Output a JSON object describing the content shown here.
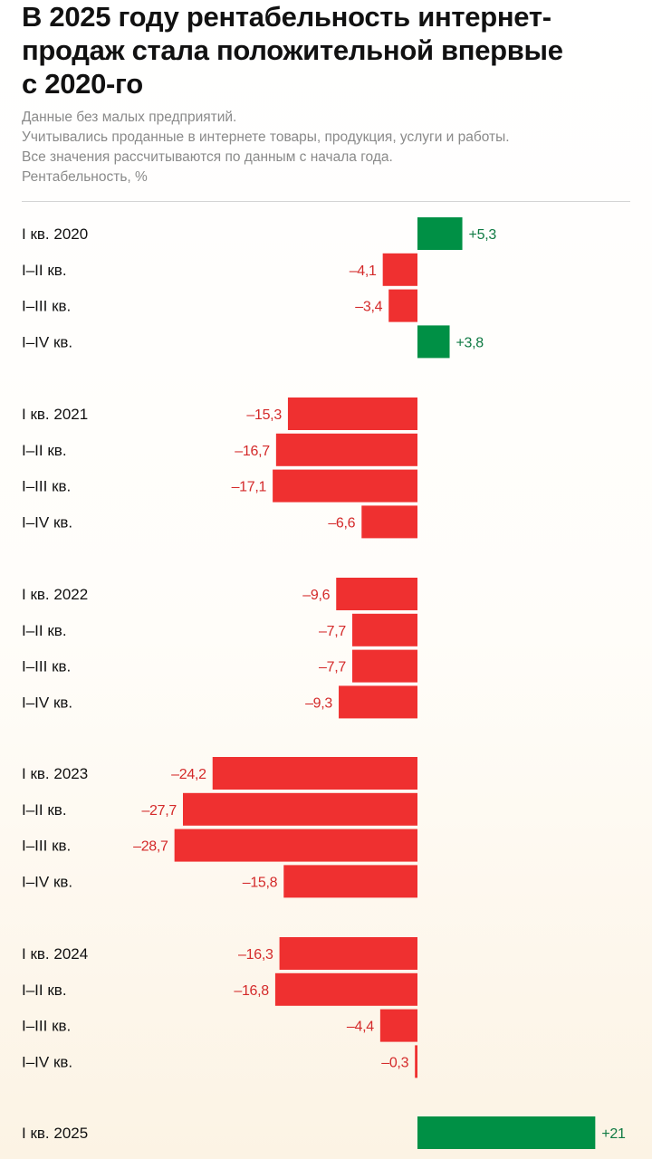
{
  "header": {
    "title_lines": [
      "В 2025 году рентабельность интернет-",
      "продаж стала положительной впервые",
      "с 2020-го"
    ],
    "notes": [
      "Данные без малых предприятий.",
      "Учитывались проданные в интернете товары, продукция, услуги и работы.",
      "Все значения рассчитываются по данным с начала года.",
      "Рентабельность, %"
    ]
  },
  "colors": {
    "positive": "#009045",
    "negative": "#ef3030",
    "positive_text": "#0f7a43",
    "negative_text": "#d42a2a"
  },
  "chart_data": {
    "type": "bar",
    "orientation": "horizontal",
    "title": "В 2025 году рентабельность интернет-продаж стала положительной впервые с 2020-го",
    "ylabel": "Рентабельность, %",
    "categories": [
      "I кв. 2020",
      "I–II кв.",
      "I–III кв.",
      "I–IV кв.",
      "I кв. 2021",
      "I–II кв.",
      "I–III кв.",
      "I–IV кв.",
      "I кв. 2022",
      "I–II кв.",
      "I–III кв.",
      "I–IV кв.",
      "I кв. 2023",
      "I–II кв.",
      "I–III кв.",
      "I–IV кв.",
      "I кв. 2024",
      "I–II кв.",
      "I–III кв.",
      "I–IV кв.",
      "I кв. 2025"
    ],
    "values": [
      5.3,
      -4.1,
      -3.4,
      3.8,
      -15.3,
      -16.7,
      -17.1,
      -6.6,
      -9.6,
      -7.7,
      -7.7,
      -9.3,
      -24.2,
      -27.7,
      -28.7,
      -15.8,
      -16.3,
      -16.8,
      -4.4,
      -0.3,
      21
    ],
    "value_labels": [
      "+5,3",
      "–4,1",
      "–3,4",
      "+3,8",
      "–15,3",
      "–16,7",
      "–17,1",
      "–6,6",
      "–9,6",
      "–7,7",
      "–7,7",
      "–9,3",
      "–24,2",
      "–27,7",
      "–28,7",
      "–15,8",
      "–16,3",
      "–16,8",
      "–4,4",
      "–0,3",
      "+21"
    ],
    "groups": [
      "2020",
      "2021",
      "2022",
      "2023",
      "2024",
      "2025"
    ],
    "group_sizes": [
      4,
      4,
      4,
      4,
      4,
      1
    ],
    "xlim": [
      -30,
      21
    ],
    "grid": false,
    "legend": "none"
  }
}
